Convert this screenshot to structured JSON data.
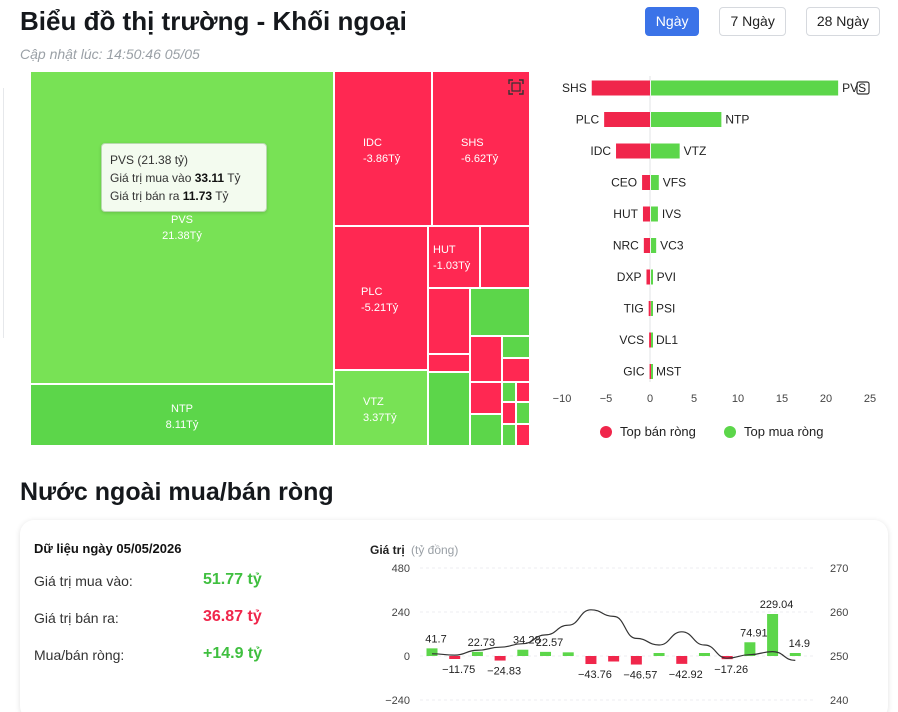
{
  "header": {
    "title": "Biểu đồ thị trường - Khối ngoại",
    "updated": "Cập nhật lúc: 14:50:46 05/05",
    "tabs": [
      {
        "label": "Ngày",
        "active": true
      },
      {
        "label": "7 Ngày",
        "active": false
      },
      {
        "label": "28 Ngày",
        "active": false
      }
    ]
  },
  "treemap": {
    "cells": [
      {
        "ticker": "PVS",
        "value": "21.38Tỷ",
        "side": "buy"
      },
      {
        "ticker": "NTP",
        "value": "8.11Tỷ",
        "side": "buy"
      },
      {
        "ticker": "IDC",
        "value": "-3.86Tỷ",
        "side": "sell"
      },
      {
        "ticker": "SHS",
        "value": "-6.62Tỷ",
        "side": "sell"
      },
      {
        "ticker": "PLC",
        "value": "-5.21Tỷ",
        "side": "sell"
      },
      {
        "ticker": "HUT",
        "value": "-1.03Tỷ",
        "side": "sell"
      },
      {
        "ticker": "VTZ",
        "value": "3.37Tỷ",
        "side": "buy"
      }
    ],
    "tooltip": {
      "title": "PVS (21.38 tỷ)",
      "buy_label": "Giá trị mua vào",
      "buy_value": "33.11",
      "sell_label": "Giá trị bán ra",
      "sell_value": "11.73",
      "unit": "Tỷ"
    }
  },
  "chart_data": [
    {
      "type": "bar",
      "title": "",
      "sell_series": {
        "name": "Top bán ròng",
        "categories": [
          "SHS",
          "PLC",
          "IDC",
          "CEO",
          "HUT",
          "NRC",
          "DXP",
          "TIG",
          "VCS",
          "GIC"
        ],
        "values": [
          -6.62,
          -5.21,
          -3.86,
          -0.9,
          -0.8,
          -0.7,
          -0.4,
          -0.15,
          -0.1,
          -0.05
        ]
      },
      "buy_series": {
        "name": "Top mua ròng",
        "categories": [
          "PVS",
          "NTP",
          "VTZ",
          "VFS",
          "IVS",
          "VC3",
          "PVI",
          "PSI",
          "DL1",
          "MST"
        ],
        "values": [
          21.38,
          8.11,
          3.37,
          1.0,
          0.9,
          0.7,
          0.3,
          0.2,
          0.15,
          0.1
        ]
      },
      "xlim": [
        -10,
        25
      ],
      "xticks": [
        "−10",
        "−5",
        "0",
        "5",
        "10",
        "15",
        "20",
        "25"
      ],
      "legend": [
        "Top bán ròng",
        "Top mua ròng"
      ],
      "colors": {
        "sell": "#f0264b",
        "buy": "#5cd64a"
      }
    },
    {
      "type": "bar",
      "title": "",
      "ylabel": "Giá trị",
      "ylabel_unit": "(tỷ đồng)",
      "ylim": [
        -240,
        480
      ],
      "left_ticks": [
        "480",
        "240",
        "0",
        "−240"
      ],
      "right_ticks": [
        "270",
        "260",
        "250",
        "240"
      ],
      "y2lim": [
        240,
        270
      ],
      "values": [
        41.7,
        -11.75,
        22.73,
        -24.83,
        34.28,
        22.57,
        20,
        -43.76,
        -30,
        -46.57,
        0,
        -42.92,
        0,
        -17.26,
        74.91,
        229.04,
        14.9
      ],
      "data_labels": [
        "41.7",
        "−11.75",
        "22.73",
        "−24.83",
        "34.28",
        "22.57",
        "",
        "−43.76",
        "",
        "−46.57",
        "",
        "−42.92",
        "",
        "−17.26",
        "74.91",
        "229.04",
        "14.9"
      ],
      "line": [
        250.5,
        250.2,
        251.3,
        252.0,
        252.8,
        254.8,
        257.0,
        260.5,
        259.0,
        254.0,
        252.5,
        255.5,
        252.5,
        249.5,
        250.3,
        251.0,
        249.0
      ],
      "colors": {
        "positive": "#5cd64a",
        "negative": "#f0264b",
        "line": "#333333"
      }
    }
  ],
  "net_section": {
    "title": "Nước ngoài mua/bán ròng",
    "date_label": "Dữ liệu ngày 05/05/2026",
    "stats": [
      {
        "label": "Giá trị mua vào:",
        "value": "51.77 tỷ",
        "color": "green"
      },
      {
        "label": "Giá trị bán ra:",
        "value": "36.87 tỷ",
        "color": "red"
      },
      {
        "label": "Mua/bán ròng:",
        "value": "+14.9 tỷ",
        "color": "green"
      }
    ]
  }
}
